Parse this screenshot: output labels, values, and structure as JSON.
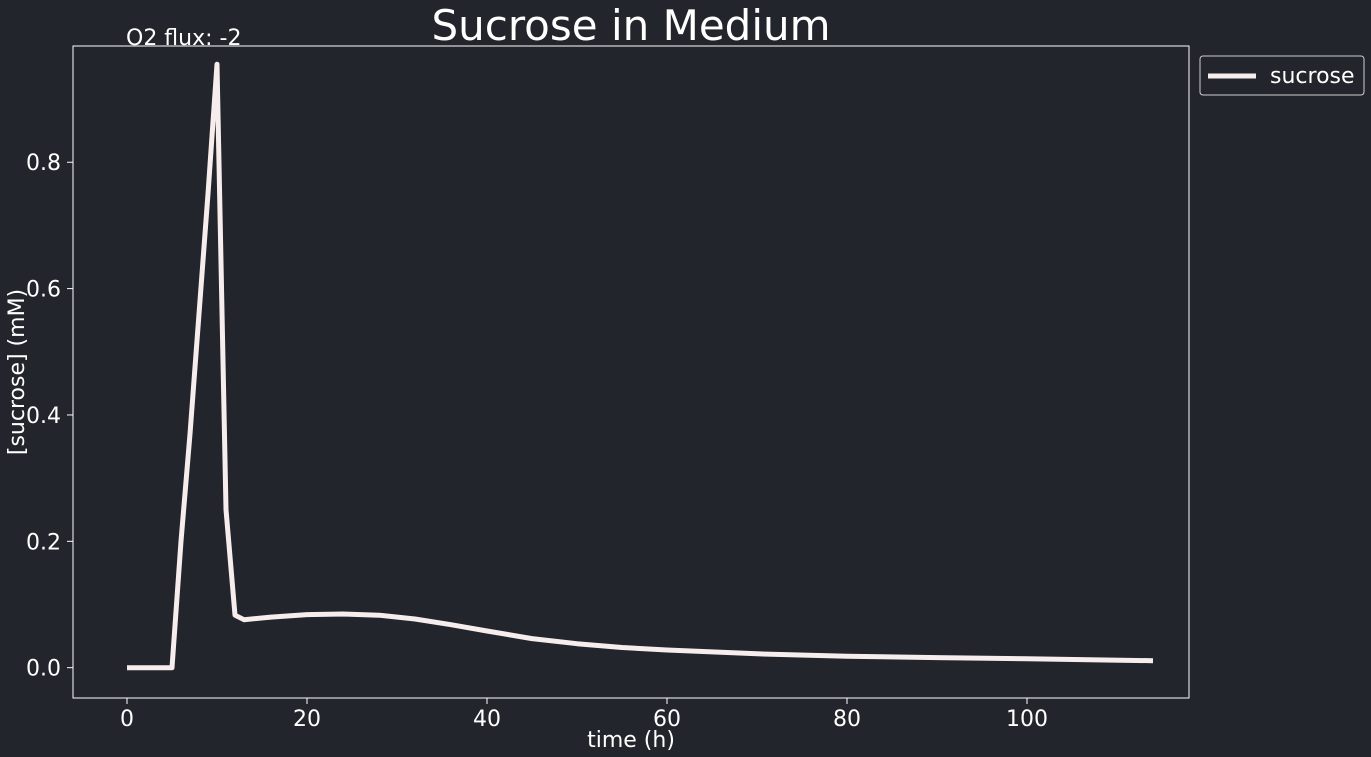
{
  "chart_data": {
    "type": "line",
    "title": "Sucrose in Medium",
    "annotation": "O2 flux: -2",
    "xlabel": "time (h)",
    "ylabel": "[sucrose] (mM)",
    "xlim": [
      -6,
      118
    ],
    "ylim": [
      -0.048,
      0.984
    ],
    "xticks": [
      0,
      20,
      40,
      60,
      80,
      100
    ],
    "yticks": [
      0.0,
      0.2,
      0.4,
      0.6,
      0.8
    ],
    "ytick_labels": [
      "0.0",
      "0.2",
      "0.4",
      "0.6",
      "0.8"
    ],
    "grid": false,
    "legend_position": "outside-top-right",
    "background_color": "#22252b",
    "axes_color": "#ffffff",
    "series": [
      {
        "name": "sucrose",
        "color": "#f7eded",
        "x": [
          0,
          5,
          6,
          7,
          8,
          9,
          10,
          11,
          12,
          13,
          16,
          20,
          24,
          28,
          32,
          36,
          40,
          45,
          50,
          55,
          60,
          70,
          80,
          90,
          100,
          114
        ],
        "y": [
          0.0,
          0.0,
          0.2,
          0.37,
          0.56,
          0.75,
          0.955,
          0.25,
          0.083,
          0.076,
          0.08,
          0.084,
          0.085,
          0.083,
          0.077,
          0.068,
          0.058,
          0.046,
          0.038,
          0.032,
          0.028,
          0.022,
          0.018,
          0.016,
          0.014,
          0.011
        ]
      }
    ]
  }
}
